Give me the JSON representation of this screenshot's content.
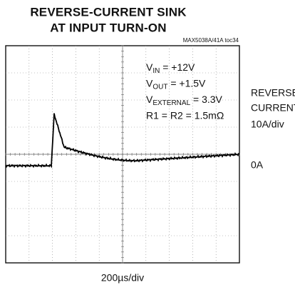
{
  "title": [
    "REVERSE-CURRENT SINK",
    "AT INPUT TURN-ON"
  ],
  "figure_id": "MAX5038A/41A toc34",
  "conditions": [
    {
      "symbol": "V",
      "sub": "IN",
      "text": " = +12V"
    },
    {
      "symbol": "V",
      "sub": "OUT",
      "text": " = +1.5V"
    },
    {
      "symbol": "V",
      "sub": "EXTERNAL",
      "text": " = 3.3V"
    },
    {
      "symbol": "R1 = R2 = 1.5mΩ",
      "sub": "",
      "text": ""
    }
  ],
  "channel_label": [
    "REVERSE",
    "CURRENT",
    "10A/div"
  ],
  "zero_label": "0A",
  "time_scale": "200µs/div"
}
